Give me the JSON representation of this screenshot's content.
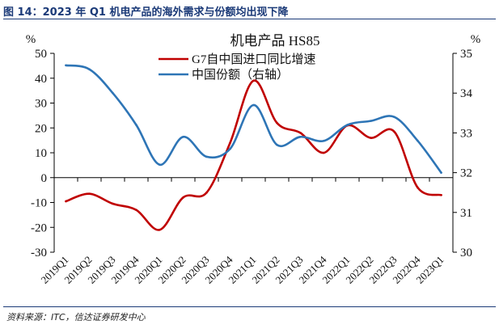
{
  "caption": "图 14：2023 年 Q1 机电产品的海外需求与份额均出现下降",
  "source": "资料来源：ITC，信达证券研发中心",
  "colors": {
    "caption": "#1b3a78",
    "growth": "#c00000",
    "share": "#2e75b6"
  },
  "chart_data": {
    "type": "line",
    "title": "机电产品 HS85",
    "categories": [
      "2019Q1",
      "2019Q2",
      "2019Q3",
      "2019Q4",
      "2020Q1",
      "2020Q2",
      "2020Q3",
      "2020Q4",
      "2021Q1",
      "2021Q2",
      "2021Q3",
      "2021Q4",
      "2022Q1",
      "2022Q2",
      "2022Q3",
      "2022Q4",
      "2023Q1"
    ],
    "y_left": {
      "unit": "%",
      "ylim": [
        -30,
        50
      ],
      "ticks": [
        50,
        40,
        30,
        20,
        10,
        0,
        -10,
        -20,
        -30
      ]
    },
    "y_right": {
      "unit": "%",
      "ylim": [
        30,
        35
      ],
      "ticks": [
        35,
        34,
        33,
        32,
        31,
        30
      ]
    },
    "grid": false,
    "legend_position": "top-right",
    "series": [
      {
        "name": "G7自中国进口同比增速",
        "axis": "left",
        "color": "#c00000",
        "values": [
          -9.5,
          -6.5,
          -10.5,
          -13,
          -21,
          -8,
          -6,
          14,
          39,
          22,
          18,
          10,
          21,
          16,
          18.5,
          -4,
          -7
        ]
      },
      {
        "name": "中国份额（右轴）",
        "axis": "right",
        "color": "#2e75b6",
        "values": [
          34.7,
          34.6,
          34,
          33.2,
          32.2,
          32.9,
          32.4,
          32.6,
          33.7,
          32.7,
          32.9,
          32.8,
          33.2,
          33.3,
          33.4,
          32.8,
          32
        ]
      }
    ]
  }
}
